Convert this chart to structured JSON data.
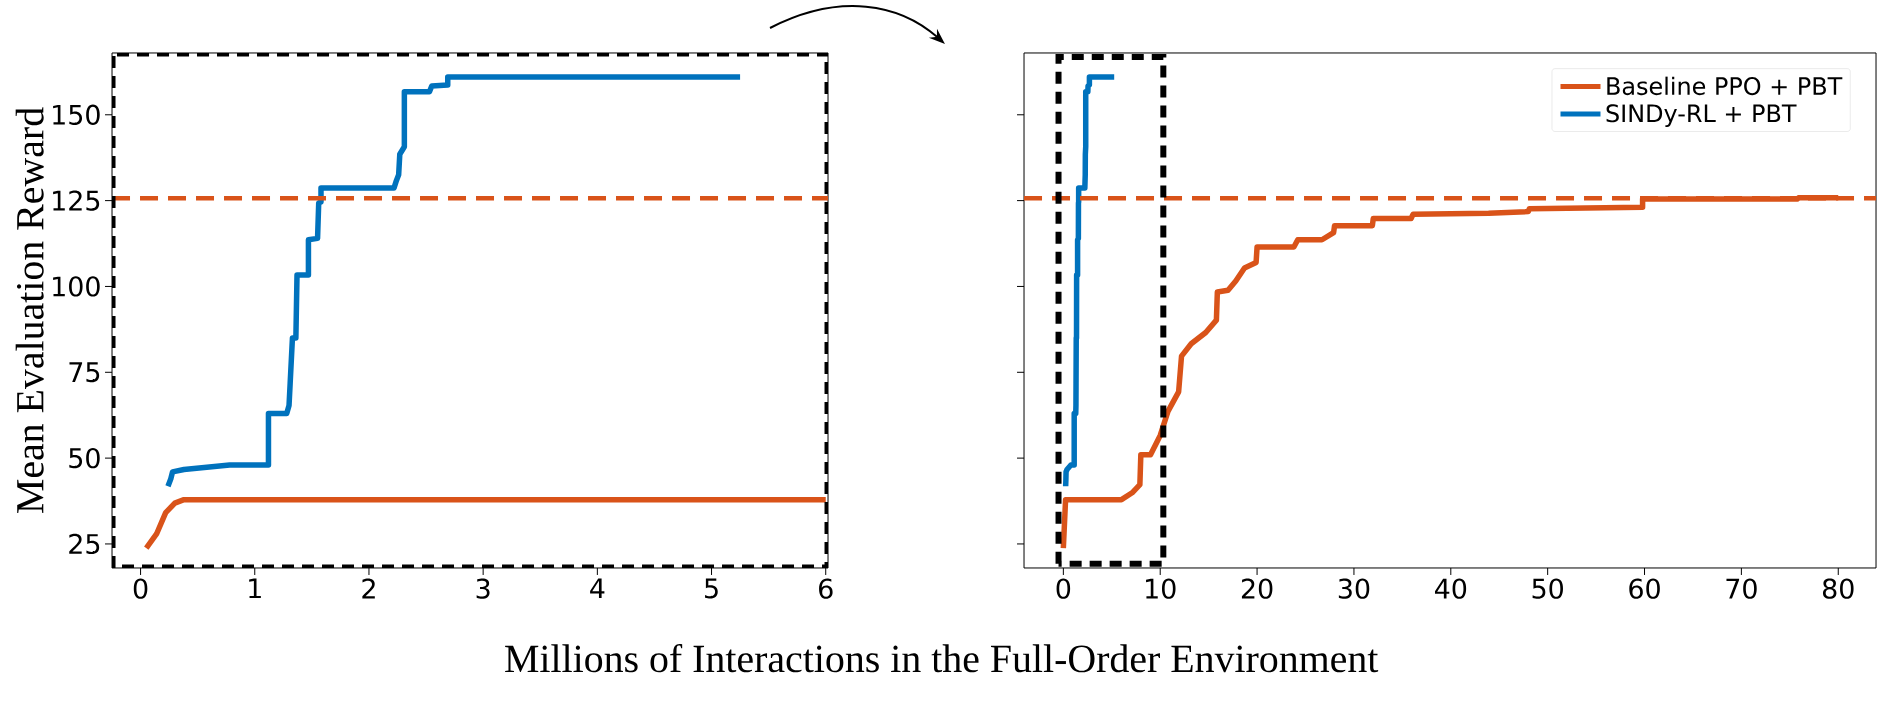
{
  "chart_data": [
    {
      "type": "line",
      "xlabel": "Millions of Interactions in the Full-Order Environment",
      "ylabel": "Mean Evaluation Reward",
      "xlim": [
        -0.25,
        6.02
      ],
      "xticks": [
        0,
        1,
        2,
        3,
        4,
        5,
        6
      ],
      "ylim": [
        18,
        168
      ],
      "yticks": [
        25,
        50,
        75,
        100,
        125,
        150
      ],
      "legend": false,
      "line_style": "solid",
      "marker": "none",
      "series": [
        {
          "color": "#d95319",
          "x": [
            0.05,
            0.14,
            0.22,
            0.3,
            0.38,
            6.0
          ],
          "values": [
            23.8,
            27.9,
            34.1,
            36.9,
            37.9,
            37.9
          ]
        },
        {
          "color": "#0072bd",
          "x": [
            0.24,
            0.265,
            0.28,
            0.38,
            0.78,
            1.12,
            1.12,
            1.28,
            1.3,
            1.31,
            1.33,
            1.36,
            1.37,
            1.47,
            1.47,
            1.55,
            1.56,
            1.58,
            1.58,
            2.22,
            2.24,
            2.26,
            2.27,
            2.31,
            2.31,
            2.53,
            2.55,
            2.69,
            2.69,
            5.25
          ],
          "values": [
            41.8,
            44,
            46,
            46.7,
            48,
            48,
            63,
            63,
            65.3,
            71.8,
            85,
            85,
            103.3,
            103.3,
            113.6,
            114,
            124.3,
            124.6,
            128.7,
            128.7,
            130.8,
            132.5,
            138.5,
            140.7,
            156.7,
            156.7,
            158.4,
            158.7,
            161,
            161
          ]
        }
      ],
      "ref_lines": [
        {
          "axis": "y",
          "value": 125.7,
          "color": "#d95319",
          "line_style": "dashed"
        }
      ]
    },
    {
      "type": "line",
      "xlim": [
        -4.06,
        83.9
      ],
      "xticks": [
        0,
        10,
        20,
        30,
        40,
        50,
        60,
        70,
        80
      ],
      "ylim": [
        18,
        168
      ],
      "yticks": [
        25,
        50,
        75,
        100,
        125,
        150
      ],
      "tick_labels": "x",
      "legend": "top right",
      "line_style": "solid",
      "marker": "none",
      "series": [
        {
          "name": "Baseline PPO + PBT",
          "color": "#d95319",
          "x": [
            0,
            0.23,
            6.0,
            7.1,
            7.9,
            8.0,
            9.0,
            10.0,
            10.8,
            11.9,
            12.2,
            13.2,
            14.7,
            15.8,
            15.9,
            17,
            17.8,
            18.7,
            19.9,
            20,
            23.8,
            24.2,
            26.7,
            27.9,
            28,
            31.9,
            32.0,
            35.9,
            36.1,
            43.9,
            48,
            48.1,
            59.8,
            59.8,
            75.8,
            75.9,
            80
          ],
          "values": [
            23.8,
            37.9,
            37.9,
            39.9,
            42.3,
            51,
            51,
            56.6,
            63.6,
            69.3,
            79.7,
            83.3,
            86.6,
            90.2,
            98.4,
            98.9,
            101.6,
            105.4,
            107,
            111.5,
            111.5,
            113.6,
            113.6,
            115.7,
            117.7,
            117.7,
            119.8,
            119.8,
            121,
            121.3,
            121.8,
            122.6,
            123.1,
            125.5,
            125.5,
            125.8,
            125.8
          ]
        },
        {
          "name": "SINDy-RL + PBT",
          "color": "#0072bd",
          "x": [
            0.24,
            0.265,
            0.28,
            0.38,
            0.78,
            1.12,
            1.12,
            1.28,
            1.3,
            1.31,
            1.33,
            1.36,
            1.37,
            1.47,
            1.47,
            1.55,
            1.56,
            1.58,
            1.58,
            2.22,
            2.24,
            2.26,
            2.27,
            2.31,
            2.31,
            2.53,
            2.55,
            2.69,
            2.69,
            5.25
          ],
          "values": [
            41.8,
            44,
            46,
            46.7,
            48,
            48,
            63,
            63,
            65.3,
            71.8,
            85,
            85,
            103.3,
            103.3,
            113.6,
            114,
            124.3,
            124.6,
            128.7,
            128.7,
            130.8,
            132.5,
            138.5,
            140.7,
            156.7,
            156.7,
            158.4,
            158.7,
            161,
            161
          ]
        }
      ],
      "ref_lines": [
        {
          "axis": "y",
          "value": 125.7,
          "color": "#d95319",
          "line_style": "dashed"
        }
      ]
    }
  ]
}
